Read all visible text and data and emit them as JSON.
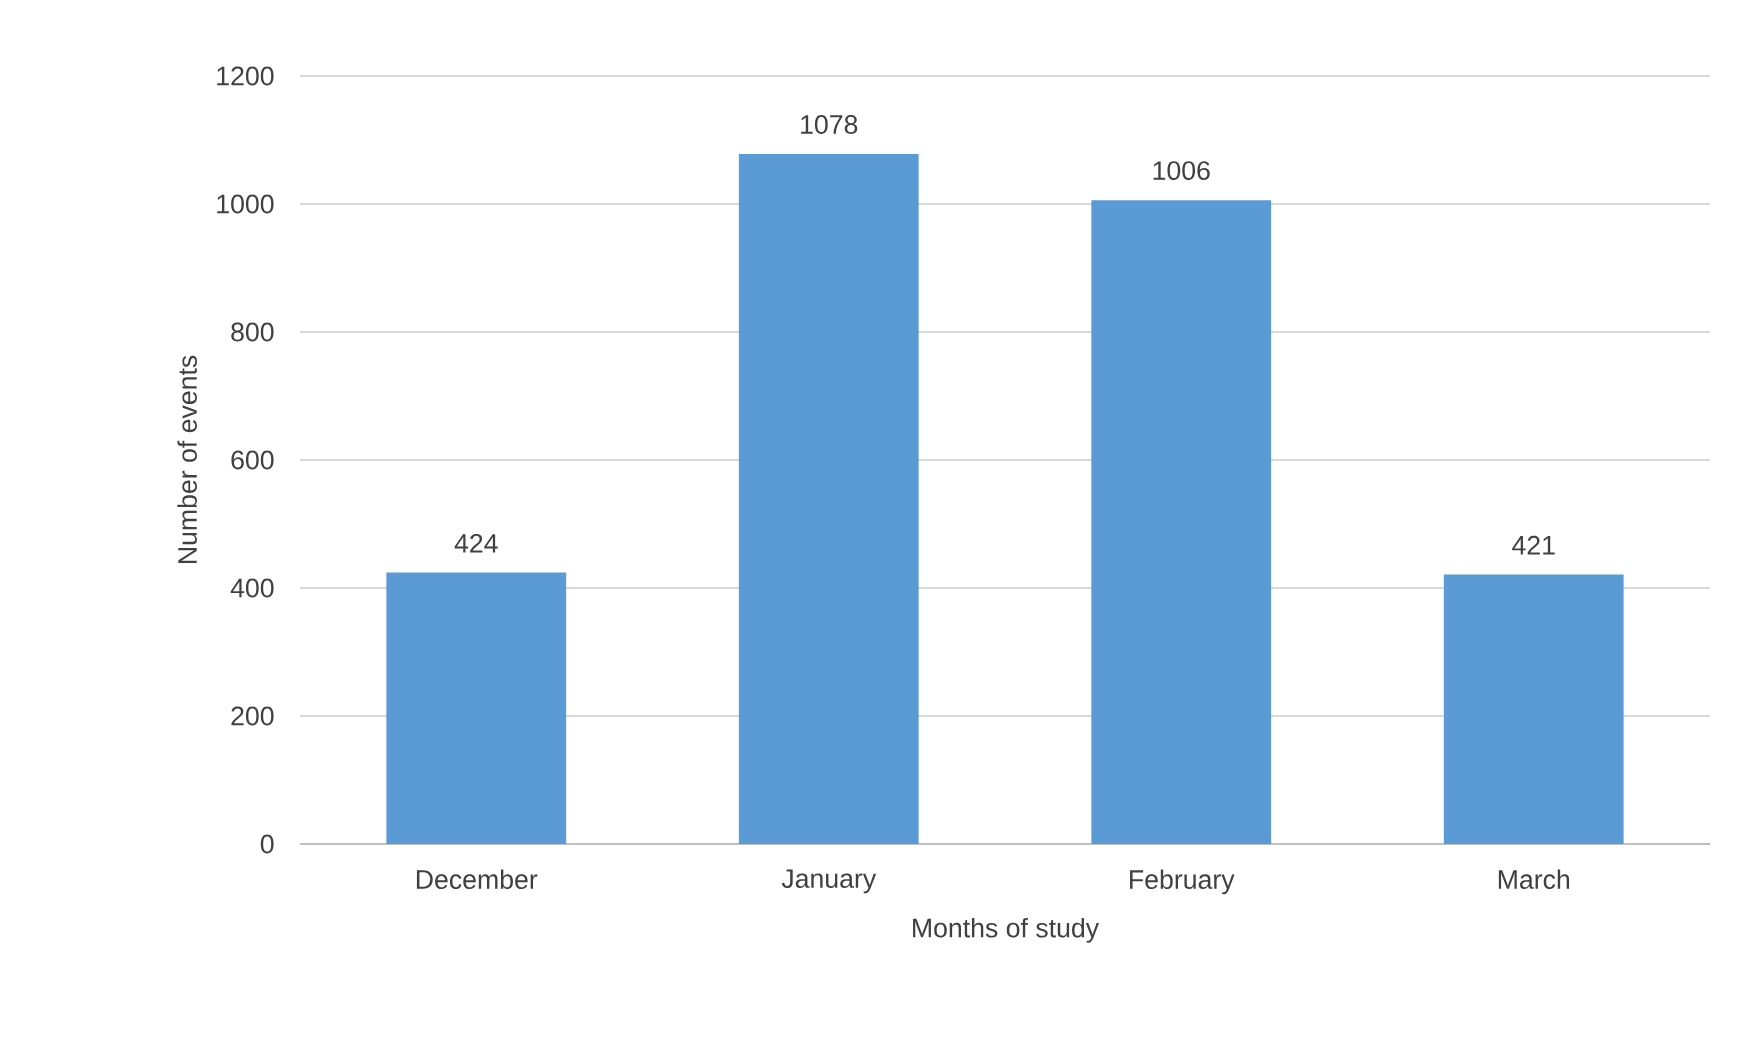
{
  "chart_data": {
    "type": "bar",
    "xlabel": "Months of study",
    "ylabel": "Number of events",
    "categories": [
      "December",
      "January",
      "February",
      "March"
    ],
    "values": [
      424,
      1078,
      1006,
      421
    ],
    "color": "#5b9bd5",
    "ylim": [
      0,
      1200
    ],
    "yticks": [
      0,
      200,
      400,
      600,
      800,
      1000,
      1200
    ],
    "grid": "y",
    "data_labels": true
  }
}
